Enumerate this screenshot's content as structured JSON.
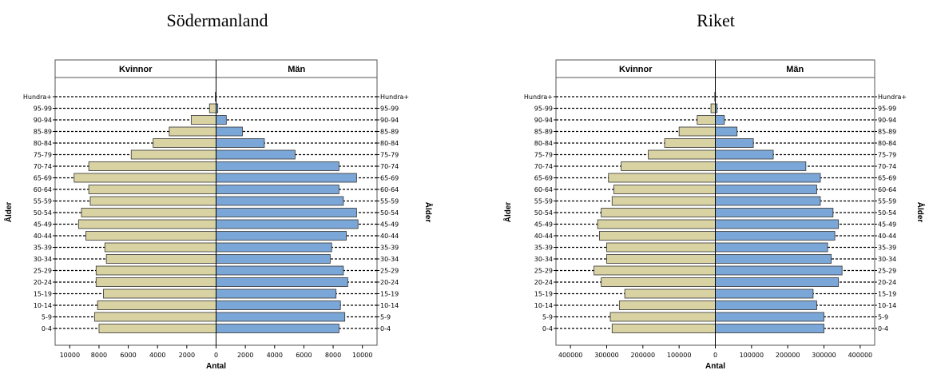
{
  "chart_data": [
    {
      "type": "bar",
      "orientation": "horizontal-pyramid",
      "title": "Södermanland",
      "left_header": "Kvinnor",
      "right_header": "Män",
      "ylabel": "Ålder",
      "xlabel": "Antal",
      "categories": [
        "0-4",
        "5-9",
        "10-14",
        "15-19",
        "20-24",
        "25-29",
        "30-34",
        "35-39",
        "40-44",
        "45-49",
        "50-54",
        "55-59",
        "60-64",
        "65-69",
        "70-74",
        "75-79",
        "80-84",
        "85-89",
        "90-94",
        "95-99",
        "Hundra+"
      ],
      "series": [
        {
          "name": "Kvinnor",
          "color": "#d9d2a3",
          "values": [
            8000,
            8300,
            8100,
            7700,
            8200,
            8200,
            7500,
            7600,
            8900,
            9400,
            9200,
            8600,
            8700,
            9700,
            8700,
            5800,
            4300,
            3200,
            1700,
            450,
            50
          ]
        },
        {
          "name": "Män",
          "color": "#7ba7d8",
          "values": [
            8400,
            8800,
            8500,
            8200,
            9000,
            8700,
            7800,
            7900,
            8900,
            9700,
            9600,
            8700,
            8400,
            9600,
            8400,
            5400,
            3300,
            1800,
            700,
            120,
            10
          ]
        }
      ],
      "xticks": [
        10000,
        8000,
        6000,
        4000,
        2000,
        0,
        2000,
        4000,
        6000,
        8000,
        10000
      ],
      "xlim": [
        -11000,
        11000
      ]
    },
    {
      "type": "bar",
      "orientation": "horizontal-pyramid",
      "title": "Riket",
      "left_header": "Kvinnor",
      "right_header": "Män",
      "ylabel": "Ålder",
      "xlabel": "Antal",
      "categories": [
        "0-4",
        "5-9",
        "10-14",
        "15-19",
        "20-24",
        "25-29",
        "30-34",
        "35-39",
        "40-44",
        "45-49",
        "50-54",
        "55-59",
        "60-64",
        "65-69",
        "70-74",
        "75-79",
        "80-84",
        "85-89",
        "90-94",
        "95-99",
        "Hundra+"
      ],
      "series": [
        {
          "name": "Kvinnor",
          "color": "#d9d2a3",
          "values": [
            285000,
            290000,
            265000,
            250000,
            315000,
            335000,
            300000,
            300000,
            320000,
            325000,
            315000,
            285000,
            280000,
            295000,
            260000,
            185000,
            140000,
            100000,
            50000,
            12000,
            1500
          ]
        },
        {
          "name": "Män",
          "color": "#7ba7d8",
          "values": [
            300000,
            300000,
            280000,
            270000,
            340000,
            350000,
            320000,
            310000,
            330000,
            340000,
            325000,
            290000,
            280000,
            290000,
            250000,
            160000,
            105000,
            60000,
            25000,
            5000,
            500
          ]
        }
      ],
      "xticks": [
        400000,
        300000,
        200000,
        100000,
        0,
        100000,
        200000,
        300000,
        400000
      ],
      "xlim": [
        -440000,
        440000
      ]
    }
  ]
}
